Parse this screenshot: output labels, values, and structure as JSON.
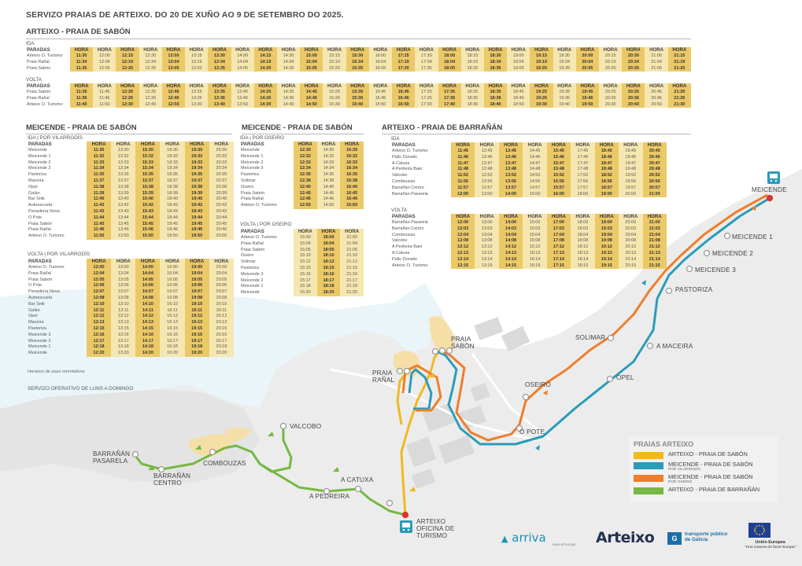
{
  "title": "SERVIZO PRAIAS DE ARTEIXO. DO 20 DE XUÑO AO 9 DE SETEMBRO DO 2025.",
  "line1": {
    "title": "ARTEIXO - PRAIA DE SABÓN",
    "ida": {
      "label": "IDA",
      "hdr": [
        "PARADAS",
        "HORA",
        "HORA",
        "HORA",
        "HORA",
        "HORA",
        "HORA",
        "HORA",
        "HORA",
        "HORA",
        "HORA",
        "HORA",
        "HORA",
        "HORA",
        "HORA",
        "HORA",
        "HORA",
        "HORA",
        "HORA",
        "HORA",
        "HORA",
        "HORA",
        "HORA",
        "HORA",
        "HORA",
        "HORA",
        "HORA",
        "HORA"
      ],
      "rows": [
        [
          "Arteixo O. Turismo",
          "11:30",
          "12:00",
          "12:15",
          "12:30",
          "13:00",
          "13:15",
          "13:30",
          "14:00",
          "14:15",
          "14:30",
          "15:00",
          "15:15",
          "15:30",
          "16:00",
          "17:15",
          "17:30",
          "18:00",
          "18:15",
          "18:30",
          "19:00",
          "19:15",
          "19:30",
          "20:00",
          "20:15",
          "20:30",
          "21:00",
          "21:15"
        ],
        [
          "Praia Rañal",
          "11:34",
          "12:04",
          "12:19",
          "12:34",
          "13:04",
          "13:19",
          "13:34",
          "14:04",
          "14:19",
          "14:34",
          "15:04",
          "15:19",
          "15:34",
          "16:04",
          "17:19",
          "17:34",
          "18:04",
          "18:19",
          "18:34",
          "19:04",
          "19:19",
          "19:34",
          "20:04",
          "20:19",
          "20:34",
          "21:04",
          "21:19"
        ],
        [
          "Praia Sabón",
          "11:35",
          "12:05",
          "12:20",
          "12:35",
          "13:05",
          "13:20",
          "13:35",
          "14:05",
          "14:20",
          "14:35",
          "15:05",
          "15:20",
          "15:35",
          "16:05",
          "17:20",
          "17:35",
          "18:05",
          "18:20",
          "18:35",
          "19:05",
          "19:20",
          "19:35",
          "20:05",
          "20:20",
          "20:35",
          "21:05",
          "21:20"
        ]
      ]
    },
    "volta": {
      "label": "VOLTA",
      "hdr": [
        "PARADAS",
        "HORA",
        "HORA",
        "HORA",
        "HORA",
        "HORA",
        "HORA",
        "HORA",
        "HORA",
        "HORA",
        "HORA",
        "HORA",
        "HORA",
        "HORA",
        "HORA",
        "HORA",
        "HORA",
        "HORA",
        "HORA",
        "HORA",
        "HORA",
        "HORA",
        "HORA",
        "HORA",
        "HORA",
        "HORA",
        "HORA",
        "HORA"
      ],
      "rows": [
        [
          "Praia Sabón",
          "11:35",
          "11:45",
          "12:25",
          "12:35",
          "12:45",
          "13:25",
          "13:35",
          "13:45",
          "14:25",
          "14:35",
          "14:45",
          "15:25",
          "15:35",
          "15:45",
          "16:45",
          "17:25",
          "17:35",
          "18:25",
          "18:35",
          "18:45",
          "19:25",
          "19:35",
          "19:45",
          "20:25",
          "20:35",
          "20:45",
          "21:25"
        ],
        [
          "Praia Rañal",
          "11:36",
          "11:46",
          "12:26",
          "12:36",
          "12:46",
          "13:26",
          "13:36",
          "13:46",
          "14:26",
          "14:36",
          "14:46",
          "15:26",
          "15:36",
          "15:46",
          "16:46",
          "17:26",
          "17:36",
          "18:26",
          "18:36",
          "18:46",
          "19:26",
          "19:36",
          "19:46",
          "20:26",
          "20:36",
          "20:46",
          "21:26"
        ],
        [
          "Arteixo O. Turismo",
          "11:40",
          "11:50",
          "12:30",
          "12:40",
          "12:50",
          "13:30",
          "13:40",
          "13:50",
          "14:30",
          "14:40",
          "14:50",
          "15:30",
          "15:40",
          "15:50",
          "16:50",
          "17:30",
          "17:40",
          "18:30",
          "18:40",
          "18:50",
          "19:30",
          "19:40",
          "19:50",
          "20:30",
          "20:40",
          "20:50",
          "21:30"
        ]
      ]
    }
  },
  "line2": {
    "title": "MEICENDE - PRAIA DE SABÓN",
    "ida": {
      "label": "IDA | POR VILARRODÍS",
      "hdr": [
        "PARADAS",
        "HORA",
        "HORA",
        "HORA",
        "HORA",
        "HORA",
        "HORA"
      ],
      "rows": [
        [
          "Meicende",
          "11:30",
          "13:30",
          "15:30",
          "18:30",
          "19:30",
          "20:30"
        ],
        [
          "Meicende 1",
          "11:32",
          "13:32",
          "15:32",
          "18:32",
          "19:32",
          "20:32"
        ],
        [
          "Meicende 2",
          "11:33",
          "13:33",
          "15:33",
          "18:33",
          "19:33",
          "20:33"
        ],
        [
          "Meicende 3",
          "11:34",
          "13:34",
          "15:34",
          "18:34",
          "19:34",
          "20:34"
        ],
        [
          "Pastoriza",
          "11:35",
          "13:35",
          "15:35",
          "18:35",
          "19:35",
          "20:35"
        ],
        [
          "Maceira",
          "11:37",
          "13:37",
          "15:37",
          "18:37",
          "19:37",
          "20:37"
        ],
        [
          "Opel",
          "11:38",
          "13:38",
          "15:38",
          "18:38",
          "19:38",
          "20:38"
        ],
        [
          "Galán",
          "11:39",
          "13:39",
          "15:39",
          "18:39",
          "19:39",
          "20:39"
        ],
        [
          "Bar Snik",
          "11:40",
          "13:40",
          "15:40",
          "18:40",
          "19:40",
          "20:40"
        ],
        [
          "Autoescuela",
          "11:42",
          "13:42",
          "15:42",
          "18:42",
          "19:42",
          "20:42"
        ],
        [
          "Panadería Nova",
          "11:43",
          "13:43",
          "15:43",
          "18:43",
          "19:43",
          "20:43"
        ],
        [
          "O Pote",
          "11:44",
          "13:44",
          "15:44",
          "18:44",
          "19:44",
          "20:44"
        ],
        [
          "Praia Sabón",
          "11:45",
          "13:45",
          "15:45",
          "18:45",
          "19:45",
          "20:45"
        ],
        [
          "Praia Rañal",
          "11:46",
          "13:46",
          "15:46",
          "18:46",
          "19:46",
          "20:46"
        ],
        [
          "Arteixo O. Turismo",
          "11:50",
          "13:50",
          "15:50",
          "18:50",
          "19:50",
          "20:50"
        ]
      ]
    },
    "volta": {
      "label": "VOLTA | POR VILARRODÍS",
      "hdr": [
        "PARADAS",
        "HORA",
        "HORA",
        "HORA",
        "HORA",
        "HORA",
        "HORA"
      ],
      "rows": [
        [
          "Arteixo O. Turismo",
          "12:00",
          "13:00",
          "14:00",
          "16:00",
          "19:00",
          "20:00"
        ],
        [
          "Praia Rañal",
          "12:04",
          "13:04",
          "14:04",
          "16:04",
          "19:04",
          "20:04"
        ],
        [
          "Praia Sabón",
          "12:05",
          "13:05",
          "14:05",
          "16:05",
          "19:05",
          "20:05"
        ],
        [
          "O Pote",
          "12:06",
          "13:06",
          "14:06",
          "16:06",
          "19:06",
          "20:06"
        ],
        [
          "Panadería Nova",
          "12:07",
          "13:07",
          "14:07",
          "16:07",
          "19:07",
          "20:07"
        ],
        [
          "Autoescuela",
          "12:08",
          "13:08",
          "14:08",
          "16:08",
          "19:08",
          "20:08"
        ],
        [
          "Bar Snik",
          "12:10",
          "13:10",
          "14:10",
          "16:10",
          "19:10",
          "20:10"
        ],
        [
          "Galán",
          "12:11",
          "13:11",
          "14:11",
          "16:11",
          "19:11",
          "20:11"
        ],
        [
          "Opel",
          "12:12",
          "13:12",
          "14:12",
          "16:12",
          "19:12",
          "20:12"
        ],
        [
          "Maceira",
          "12:13",
          "13:13",
          "14:13",
          "16:13",
          "19:13",
          "20:13"
        ],
        [
          "Pastoriza",
          "12:15",
          "13:15",
          "14:15",
          "16:15",
          "19:15",
          "20:15"
        ],
        [
          "Meicende 3",
          "12:16",
          "13:16",
          "14:16",
          "16:16",
          "19:16",
          "20:16"
        ],
        [
          "Meicende 2",
          "12:17",
          "13:17",
          "14:17",
          "16:17",
          "19:17",
          "20:17"
        ],
        [
          "Meicende 1",
          "12:18",
          "13:18",
          "14:18",
          "16:18",
          "19:18",
          "20:18"
        ],
        [
          "Meicende",
          "12:20",
          "13:20",
          "14:20",
          "16:20",
          "19:20",
          "20:20"
        ]
      ]
    },
    "note": "Horarios de paso orientativos"
  },
  "line3": {
    "title": "MEICENDE - PRAIA DE SABÓN",
    "ida": {
      "label": "IDA | POR OSEIRO",
      "hdr": [
        "PARADAS",
        "HORA",
        "HORA",
        "HORA"
      ],
      "rows": [
        [
          "Meicende",
          "12:30",
          "14:30",
          "16:30"
        ],
        [
          "Meicende 1",
          "12:32",
          "14:32",
          "16:32"
        ],
        [
          "Meicende 2",
          "12:33",
          "14:33",
          "16:33"
        ],
        [
          "Meicende 3",
          "12:34",
          "14:34",
          "16:34"
        ],
        [
          "Pastoriza",
          "12:35",
          "14:35",
          "16:35"
        ],
        [
          "Solimar",
          "12:38",
          "14:38",
          "16:38"
        ],
        [
          "Oseiro",
          "12:40",
          "14:40",
          "16:40"
        ],
        [
          "Praia Sabón",
          "12:45",
          "14:45",
          "16:45"
        ],
        [
          "Praia Rañal",
          "12:46",
          "14:46",
          "16:46"
        ],
        [
          "Arteixo O. Turismo",
          "12:50",
          "14:50",
          "16:50"
        ]
      ]
    },
    "volta": {
      "label": "VOLTA | POR OSEIRO",
      "hdr": [
        "PARADAS",
        "HORA",
        "HORA",
        "HORA"
      ],
      "rows": [
        [
          "Arteixo O. Turismo",
          "15:00",
          "18:00",
          "21:00"
        ],
        [
          "Praia Rañal",
          "15:04",
          "18:04",
          "21:04"
        ],
        [
          "Praia Sabón",
          "15:05",
          "18:05",
          "21:05"
        ],
        [
          "Oseiro",
          "15:10",
          "18:10",
          "21:10"
        ],
        [
          "Solimar",
          "15:12",
          "18:12",
          "21:12"
        ],
        [
          "Pastoriza",
          "15:15",
          "18:15",
          "21:15"
        ],
        [
          "Meicende 3",
          "15:16",
          "18:16",
          "21:16"
        ],
        [
          "Meicende 2",
          "15:17",
          "18:17",
          "21:17"
        ],
        [
          "Meicende 1",
          "15:18",
          "18:18",
          "21:18"
        ],
        [
          "Meicende",
          "15:20",
          "18:20",
          "21:20"
        ]
      ]
    }
  },
  "line4": {
    "title": "ARTEIXO - PRAIA DE BARRAÑÁN",
    "ida": {
      "label": "IDA",
      "hdr": [
        "PARADAS",
        "HORA",
        "HORA",
        "HORA",
        "HORA",
        "HORA",
        "HORA",
        "HORA",
        "HORA",
        "HORA"
      ],
      "rows": [
        [
          "Arteixo O. Turismo",
          "11:45",
          "12:45",
          "13:45",
          "14:45",
          "15:45",
          "17:45",
          "18:45",
          "19:45",
          "20:45"
        ],
        [
          "Pallo Dorado",
          "11:46",
          "12:46",
          "13:46",
          "14:46",
          "15:46",
          "17:46",
          "18:46",
          "19:46",
          "20:46"
        ],
        [
          "A Catuxa",
          "11:47",
          "12:47",
          "13:47",
          "14:47",
          "15:47",
          "17:47",
          "18:47",
          "19:47",
          "20:47"
        ],
        [
          "A Pedreira Baer",
          "11:48",
          "12:48",
          "13:48",
          "14:48",
          "15:48",
          "17:48",
          "18:48",
          "19:48",
          "20:48"
        ],
        [
          "Valcobo",
          "11:52",
          "12:52",
          "13:52",
          "14:52",
          "15:52",
          "17:52",
          "18:52",
          "19:52",
          "20:52"
        ],
        [
          "Combeuzas",
          "11:56",
          "12:56",
          "13:56",
          "14:56",
          "15:56",
          "17:56",
          "18:56",
          "19:56",
          "20:56"
        ],
        [
          "Barrañán Centro",
          "11:57",
          "12:57",
          "13:57",
          "14:57",
          "15:57",
          "17:57",
          "18:57",
          "19:57",
          "20:57"
        ],
        [
          "Barrañán Pasarela",
          "12:00",
          "13:00",
          "14:00",
          "15:00",
          "16:00",
          "18:00",
          "19:00",
          "20:00",
          "21:00"
        ]
      ]
    },
    "volta": {
      "label": "VOLTA",
      "hdr": [
        "PARADAS",
        "HORA",
        "HORA",
        "HORA",
        "HORA",
        "HORA",
        "HORA",
        "HORA",
        "HORA",
        "HORA"
      ],
      "rows": [
        [
          "Barrañán Pasarela",
          "12:00",
          "13:00",
          "14:00",
          "15:00",
          "17:00",
          "18:00",
          "19:00",
          "20:00",
          "21:00"
        ],
        [
          "Barrañán Centro",
          "12:03",
          "13:03",
          "14:03",
          "15:03",
          "17:03",
          "18:03",
          "19:03",
          "20:03",
          "21:03"
        ],
        [
          "Combouzas",
          "12:04",
          "13:04",
          "14:04",
          "15:04",
          "17:04",
          "18:04",
          "19:04",
          "20:04",
          "21:04"
        ],
        [
          "Valcobo",
          "12:08",
          "13:08",
          "14:08",
          "15:08",
          "17:08",
          "18:08",
          "19:08",
          "20:08",
          "21:08"
        ],
        [
          "A Pedreira Baer",
          "12:12",
          "13:12",
          "14:12",
          "15:12",
          "17:12",
          "18:12",
          "19:12",
          "20:12",
          "21:12"
        ],
        [
          "A Catuxa",
          "12:13",
          "13:13",
          "14:13",
          "15:13",
          "17:13",
          "18:13",
          "19:13",
          "20:13",
          "21:13"
        ],
        [
          "Pallo Dorado",
          "12:14",
          "13:14",
          "14:14",
          "15:14",
          "17:14",
          "18:14",
          "19:14",
          "20:14",
          "21:14"
        ],
        [
          "Arteixo O. Turismo",
          "12:15",
          "13:15",
          "14:15",
          "15:15",
          "17:15",
          "18:15",
          "19:15",
          "20:15",
          "21:15"
        ]
      ]
    }
  },
  "service_note": "SERVIZO OPERATIVO DE LUNS A DOMINGO",
  "map_labels": {
    "meicende": "MEICENDE",
    "meicende1": "MEICENDE 1",
    "meicende2": "MEICENDE 2",
    "meicende3": "MEICENDE 3",
    "pastoriza": "PASTORIZA",
    "solimar": "SOLIMAR",
    "maceira": "A MACEIRA",
    "opel": "OPEL",
    "oseiro": "OSEIRO",
    "opote": "O POTE",
    "praia_sabon_1": "PRAIA",
    "praia_sabon_2": "SABÓN",
    "praia_ranal_1": "PRAIA",
    "praia_ranal_2": "RAÑAL",
    "valcobo": "VALCOBO",
    "barranan_pasarela_1": "BARRAÑÁN",
    "barranan_pasarela_2": "PASARELA",
    "barranan_centro_1": "BARRAÑÁN",
    "barranan_centro_2": "CENTRO",
    "combouzas": "COMBOUZAS",
    "catuxa": "A CATUXA",
    "pedreira": "A PEDREIRA",
    "arteixo_1": "ARTEIXO",
    "arteixo_2": "OFICINA DE",
    "arteixo_3": "TURISMO"
  },
  "legend": {
    "title": "PRAIAS ARTEIXO",
    "items": [
      {
        "label": "ARTEIXO - PRAIA DE SABÓN",
        "sub": "",
        "color": "#f1b81f"
      },
      {
        "label": "MEICENDE - PRAIA DE SABÓN",
        "sub": "POR VILARRODÍS",
        "color": "#2a9cb8"
      },
      {
        "label": "MEICENDE - PRAIA DE SABÓN",
        "sub": "POR OSEIRO",
        "color": "#f07d2a"
      },
      {
        "label": "ARTEIXO - PRAIA DE BARRAÑÁN",
        "sub": "",
        "color": "#76b843"
      }
    ]
  },
  "logos": {
    "arriva": "arriva",
    "arriva_url": "www.arriva.gal",
    "arteixo": "Arteixo",
    "tpg_mark": "G",
    "tpg_1": "transporte público",
    "tpg_2": "de Galicia",
    "eu_1": "Unión Europea",
    "eu_2": "\"Una manera de facer Europa\""
  },
  "colors": {
    "yellow": "#f1b81f",
    "blue": "#2a9cb8",
    "orange": "#f07d2a",
    "green": "#76b843"
  }
}
